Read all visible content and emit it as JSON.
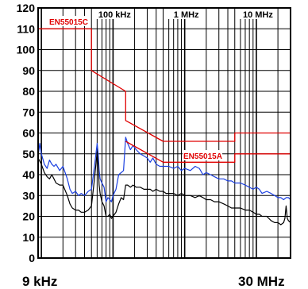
{
  "chart_data": {
    "type": "line",
    "x_scale": "log",
    "x_unit": "Hz",
    "xlim": [
      9000,
      30000000
    ],
    "ylim": [
      0,
      120
    ],
    "y_ticks": [
      0,
      10,
      20,
      30,
      40,
      50,
      60,
      70,
      80,
      90,
      100,
      110,
      120
    ],
    "grid": true,
    "x_top_labels": [
      {
        "x": 100000,
        "label": "100 kHz"
      },
      {
        "x": 1000000,
        "label": "1 MHz"
      },
      {
        "x": 10000000,
        "label": "10 MHz"
      }
    ],
    "x_edge_labels": {
      "left": "9 kHz",
      "right": "30 MHz"
    },
    "limit_labels": {
      "class_c": "EN55015C",
      "class_a": "EN55015A"
    },
    "series": [
      {
        "name": "EN55015C",
        "color": "#e00000",
        "x": [
          9000,
          50000,
          50000,
          150000,
          150000,
          500000,
          500000,
          5000000,
          5000000,
          30000000
        ],
        "y": [
          110,
          110,
          90,
          80,
          66,
          56,
          56,
          56,
          60,
          60
        ]
      },
      {
        "name": "EN55015A",
        "color": "#e00000",
        "x": [
          150000,
          500000,
          5000000,
          5000000,
          30000000
        ],
        "y": [
          56,
          46,
          46,
          50,
          50
        ]
      },
      {
        "color": "#1a3fe0",
        "x": [
          9000,
          9500,
          10000,
          11000,
          12000,
          13000,
          14000,
          15000,
          16000,
          18000,
          20000,
          23000,
          25000,
          27000,
          30000,
          33000,
          36000,
          40000,
          45000,
          50000,
          55000,
          60000,
          62000,
          64000,
          66000,
          70000,
          75000,
          80000,
          85000,
          90000,
          95000,
          100000,
          110000,
          120000,
          130000,
          140000,
          150000,
          160000,
          175000,
          190000,
          210000,
          240000,
          270000,
          300000,
          330000,
          360000,
          400000,
          450000,
          500000,
          550000,
          600000,
          700000,
          800000,
          900000,
          1000000,
          1200000,
          1400000,
          1600000,
          1800000,
          2000000,
          2300000,
          2600000,
          3000000,
          3500000,
          4000000,
          4500000,
          5000000,
          6000000,
          7000000,
          8000000,
          9000000,
          10000000,
          11000000,
          12000000,
          14000000,
          16000000,
          18000000,
          20000000,
          22000000,
          24000000,
          26000000,
          28000000,
          30000000
        ],
        "y": [
          49,
          55,
          50,
          45,
          43,
          47,
          45,
          44,
          45,
          42,
          44,
          38,
          33,
          31,
          32,
          30,
          31,
          30,
          32,
          33,
          44,
          55,
          50,
          42,
          38,
          36,
          34,
          27,
          29,
          28,
          27,
          30,
          33,
          40,
          41,
          42,
          58,
          55,
          52,
          54,
          52,
          50,
          49,
          48,
          46,
          48,
          45,
          44,
          44,
          44,
          44,
          43,
          44,
          42,
          43,
          42,
          44,
          43,
          40,
          41,
          40,
          39,
          38,
          38,
          37,
          37,
          36,
          36,
          35,
          34,
          33,
          34,
          33,
          31,
          32,
          31,
          30,
          29,
          29,
          28,
          29,
          29,
          28
        ]
      },
      {
        "color": "#000000",
        "x": [
          9000,
          10000,
          11000,
          12000,
          13000,
          14000,
          15000,
          16000,
          18000,
          20000,
          23000,
          25000,
          27000,
          30000,
          33000,
          36000,
          40000,
          45000,
          50000,
          55000,
          60000,
          62000,
          64000,
          66000,
          70000,
          75000,
          80000,
          85000,
          90000,
          95000,
          100000,
          110000,
          120000,
          130000,
          140000,
          150000,
          160000,
          175000,
          190000,
          210000,
          240000,
          270000,
          300000,
          330000,
          360000,
          400000,
          450000,
          500000,
          550000,
          600000,
          700000,
          800000,
          900000,
          1000000,
          1200000,
          1400000,
          1600000,
          1800000,
          2000000,
          2300000,
          2600000,
          3000000,
          3500000,
          4000000,
          4500000,
          5000000,
          6000000,
          7000000,
          8000000,
          9000000,
          10000000,
          11000000,
          12000000,
          14000000,
          16000000,
          18000000,
          20000000,
          22000000,
          24000000,
          25000000,
          26000000,
          27000000,
          28000000,
          30000000
        ],
        "y": [
          48,
          45,
          41,
          39,
          38,
          40,
          38,
          36,
          35,
          35,
          30,
          26,
          24,
          23,
          23,
          22,
          22,
          23,
          25,
          38,
          51,
          45,
          35,
          31,
          27,
          25,
          20,
          20,
          21,
          19,
          20,
          22,
          26,
          29,
          28,
          35,
          35,
          34,
          35,
          34,
          34,
          33,
          33,
          33,
          32,
          33,
          32,
          32,
          31,
          31,
          31,
          30,
          31,
          30,
          30,
          29,
          30,
          29,
          28,
          28,
          27,
          27,
          26,
          25,
          24,
          24,
          24,
          23,
          23,
          22,
          21,
          21,
          20,
          20,
          18,
          17,
          17,
          16,
          17,
          19,
          25,
          19,
          18,
          17
        ]
      }
    ]
  }
}
